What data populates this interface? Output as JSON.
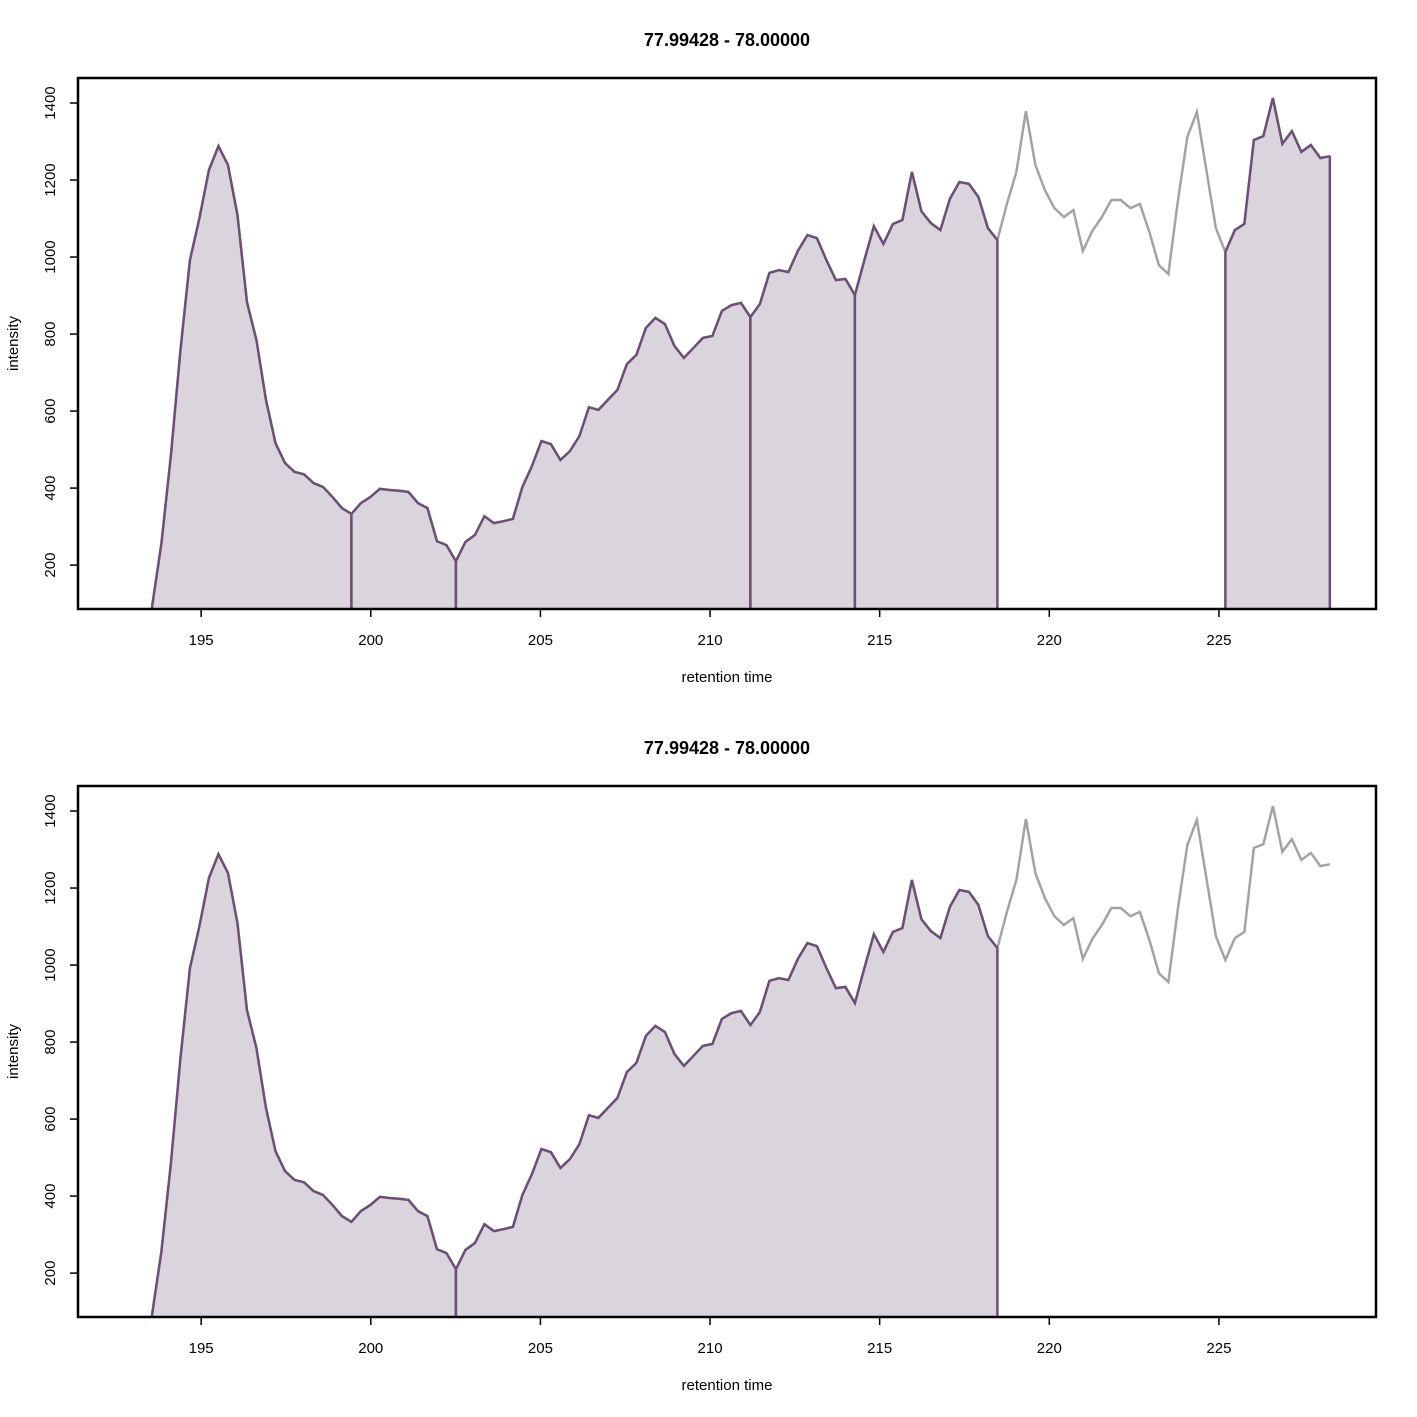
{
  "chart_data": [
    {
      "type": "area",
      "title": "77.99428 - 78.00000",
      "xlabel": "retention time",
      "ylabel": "intensity",
      "xlim": [
        191.37,
        229.63
      ],
      "ylim": [
        86,
        1465
      ],
      "xticks": [
        195,
        200,
        205,
        210,
        215,
        220,
        225
      ],
      "yticks": [
        200,
        400,
        600,
        800,
        1000,
        1200,
        1400
      ],
      "line_color": "#a3a3a3",
      "peak_color": "#6b4f75",
      "fill_color": "#dad5dc",
      "peaks": [
        [
          193.55,
          199.43
        ],
        [
          199.43,
          202.51
        ],
        [
          202.51,
          211.19
        ],
        [
          211.19,
          214.27
        ],
        [
          214.27,
          218.47
        ],
        [
          225.19,
          228.27
        ]
      ],
      "x": [
        193.55,
        193.83,
        194.11,
        194.39,
        194.67,
        194.95,
        195.23,
        195.51,
        195.79,
        196.07,
        196.35,
        196.63,
        196.91,
        197.19,
        197.47,
        197.75,
        198.03,
        198.31,
        198.59,
        198.87,
        199.15,
        199.43,
        199.71,
        199.99,
        200.27,
        200.55,
        200.83,
        201.11,
        201.39,
        201.67,
        201.95,
        202.23,
        202.51,
        202.79,
        203.07,
        203.35,
        203.63,
        203.91,
        204.19,
        204.47,
        204.75,
        205.03,
        205.31,
        205.59,
        205.87,
        206.15,
        206.43,
        206.71,
        206.99,
        207.27,
        207.55,
        207.83,
        208.11,
        208.39,
        208.67,
        208.95,
        209.23,
        209.51,
        209.79,
        210.07,
        210.35,
        210.63,
        210.91,
        211.19,
        211.47,
        211.75,
        212.03,
        212.31,
        212.59,
        212.87,
        213.15,
        213.43,
        213.71,
        213.99,
        214.27,
        214.55,
        214.83,
        215.11,
        215.39,
        215.67,
        215.95,
        216.23,
        216.51,
        216.79,
        217.07,
        217.35,
        217.63,
        217.91,
        218.19,
        218.47,
        218.75,
        219.03,
        219.31,
        219.59,
        219.87,
        220.15,
        220.43,
        220.71,
        220.99,
        221.27,
        221.55,
        221.83,
        222.11,
        222.39,
        222.67,
        222.95,
        223.23,
        223.51,
        223.79,
        224.07,
        224.35,
        224.63,
        224.91,
        225.19,
        225.47,
        225.75,
        226.03,
        226.31,
        226.59,
        226.87,
        227.15,
        227.43,
        227.71,
        227.99,
        228.27
      ],
      "values": [
        90,
        257,
        486,
        758,
        992,
        1101,
        1226,
        1288,
        1239,
        1109,
        883,
        784,
        629,
        517,
        465,
        442,
        436,
        413,
        403,
        377,
        348,
        333,
        361,
        377,
        398,
        395,
        393,
        390,
        361,
        348,
        262,
        252,
        210,
        260,
        278,
        327,
        309,
        314,
        320,
        403,
        457,
        522,
        514,
        473,
        496,
        535,
        610,
        603,
        629,
        655,
        722,
        746,
        816,
        842,
        826,
        769,
        738,
        764,
        790,
        795,
        860,
        875,
        881,
        844,
        878,
        959,
        966,
        961,
        1016,
        1057,
        1049,
        992,
        940,
        943,
        901,
        992,
        1080,
        1034,
        1086,
        1096,
        1221,
        1119,
        1088,
        1070,
        1151,
        1195,
        1190,
        1156,
        1075,
        1044,
        1138,
        1221,
        1379,
        1239,
        1174,
        1127,
        1104,
        1122,
        1016,
        1068,
        1104,
        1148,
        1148,
        1127,
        1138,
        1065,
        979,
        956,
        1146,
        1312,
        1377,
        1226,
        1075,
        1013,
        1070,
        1086,
        1304,
        1314,
        1413,
        1294,
        1327,
        1273,
        1291,
        1257,
        1262
      ]
    },
    {
      "type": "area",
      "title": "77.99428 - 78.00000",
      "xlabel": "retention time",
      "ylabel": "intensity",
      "xlim": [
        191.37,
        229.63
      ],
      "ylim": [
        86,
        1465
      ],
      "xticks": [
        195,
        200,
        205,
        210,
        215,
        220,
        225
      ],
      "yticks": [
        200,
        400,
        600,
        800,
        1000,
        1200,
        1400
      ],
      "line_color": "#a3a3a3",
      "peak_color": "#6b4f75",
      "fill_color": "#dad5dc",
      "peaks": [
        [
          193.55,
          202.51
        ],
        [
          202.51,
          218.47
        ]
      ],
      "x": [
        193.55,
        193.83,
        194.11,
        194.39,
        194.67,
        194.95,
        195.23,
        195.51,
        195.79,
        196.07,
        196.35,
        196.63,
        196.91,
        197.19,
        197.47,
        197.75,
        198.03,
        198.31,
        198.59,
        198.87,
        199.15,
        199.43,
        199.71,
        199.99,
        200.27,
        200.55,
        200.83,
        201.11,
        201.39,
        201.67,
        201.95,
        202.23,
        202.51,
        202.79,
        203.07,
        203.35,
        203.63,
        203.91,
        204.19,
        204.47,
        204.75,
        205.03,
        205.31,
        205.59,
        205.87,
        206.15,
        206.43,
        206.71,
        206.99,
        207.27,
        207.55,
        207.83,
        208.11,
        208.39,
        208.67,
        208.95,
        209.23,
        209.51,
        209.79,
        210.07,
        210.35,
        210.63,
        210.91,
        211.19,
        211.47,
        211.75,
        212.03,
        212.31,
        212.59,
        212.87,
        213.15,
        213.43,
        213.71,
        213.99,
        214.27,
        214.55,
        214.83,
        215.11,
        215.39,
        215.67,
        215.95,
        216.23,
        216.51,
        216.79,
        217.07,
        217.35,
        217.63,
        217.91,
        218.19,
        218.47,
        218.75,
        219.03,
        219.31,
        219.59,
        219.87,
        220.15,
        220.43,
        220.71,
        220.99,
        221.27,
        221.55,
        221.83,
        222.11,
        222.39,
        222.67,
        222.95,
        223.23,
        223.51,
        223.79,
        224.07,
        224.35,
        224.63,
        224.91,
        225.19,
        225.47,
        225.75,
        226.03,
        226.31,
        226.59,
        226.87,
        227.15,
        227.43,
        227.71,
        227.99,
        228.27
      ],
      "values": [
        90,
        257,
        486,
        758,
        992,
        1101,
        1226,
        1288,
        1239,
        1109,
        883,
        784,
        629,
        517,
        465,
        442,
        436,
        413,
        403,
        377,
        348,
        333,
        361,
        377,
        398,
        395,
        393,
        390,
        361,
        348,
        262,
        252,
        210,
        260,
        278,
        327,
        309,
        314,
        320,
        403,
        457,
        522,
        514,
        473,
        496,
        535,
        610,
        603,
        629,
        655,
        722,
        746,
        816,
        842,
        826,
        769,
        738,
        764,
        790,
        795,
        860,
        875,
        881,
        844,
        878,
        959,
        966,
        961,
        1016,
        1057,
        1049,
        992,
        940,
        943,
        901,
        992,
        1080,
        1034,
        1086,
        1096,
        1221,
        1119,
        1088,
        1070,
        1151,
        1195,
        1190,
        1156,
        1075,
        1044,
        1138,
        1221,
        1379,
        1239,
        1174,
        1127,
        1104,
        1122,
        1016,
        1068,
        1104,
        1148,
        1148,
        1127,
        1138,
        1065,
        979,
        956,
        1146,
        1312,
        1377,
        1226,
        1075,
        1013,
        1070,
        1086,
        1304,
        1314,
        1413,
        1294,
        1327,
        1273,
        1291,
        1257,
        1262
      ]
    }
  ]
}
